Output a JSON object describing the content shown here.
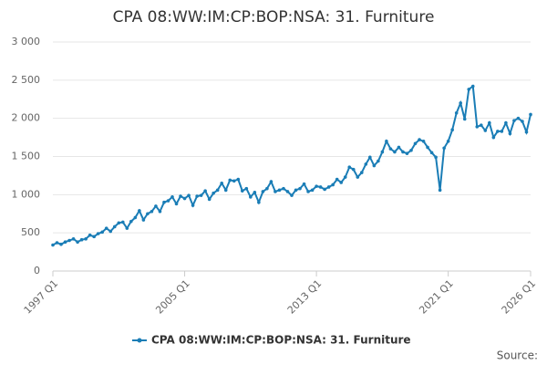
{
  "chart_data": {
    "type": "line",
    "title": "CPA 08:WW:IM:CP:BOP:NSA: 31. Furniture",
    "source": "Source:",
    "categories": [
      "1997 Q1",
      null,
      null,
      null,
      null,
      null,
      null,
      null,
      null,
      null,
      null,
      null,
      null,
      null,
      null,
      null,
      null,
      null,
      null,
      null,
      null,
      null,
      null,
      null,
      null,
      null,
      null,
      null,
      null,
      null,
      null,
      null,
      "2005 Q1",
      null,
      null,
      null,
      null,
      null,
      null,
      null,
      null,
      null,
      null,
      null,
      null,
      null,
      null,
      null,
      null,
      null,
      null,
      null,
      null,
      null,
      null,
      null,
      null,
      null,
      null,
      null,
      null,
      null,
      null,
      null,
      "2013 Q1",
      null,
      null,
      null,
      null,
      null,
      null,
      null,
      null,
      null,
      null,
      null,
      null,
      null,
      null,
      null,
      null,
      null,
      null,
      null,
      null,
      null,
      null,
      null,
      null,
      null,
      null,
      null,
      null,
      null,
      null,
      null,
      "2021 Q1",
      null,
      null,
      null,
      null,
      null,
      null,
      null,
      null,
      null,
      null,
      null,
      null,
      null,
      null,
      null,
      null,
      null,
      null,
      null,
      "2026 Q1"
    ],
    "series": [
      {
        "name": "CPA 08:WW:IM:CP:BOP:NSA: 31. Furniture",
        "color": "#1a7db6",
        "values": [
          340,
          370,
          350,
          380,
          400,
          420,
          380,
          410,
          420,
          470,
          450,
          490,
          510,
          560,
          520,
          580,
          630,
          640,
          560,
          650,
          700,
          790,
          670,
          750,
          780,
          850,
          780,
          900,
          920,
          970,
          880,
          980,
          950,
          990,
          860,
          980,
          990,
          1050,
          940,
          1020,
          1060,
          1150,
          1060,
          1190,
          1180,
          1200,
          1050,
          1080,
          970,
          1030,
          900,
          1040,
          1080,
          1170,
          1040,
          1060,
          1080,
          1040,
          990,
          1060,
          1080,
          1140,
          1040,
          1060,
          1110,
          1100,
          1070,
          1100,
          1130,
          1200,
          1160,
          1230,
          1360,
          1330,
          1230,
          1290,
          1400,
          1490,
          1380,
          1440,
          1560,
          1700,
          1600,
          1560,
          1620,
          1560,
          1540,
          1580,
          1670,
          1720,
          1700,
          1620,
          1550,
          1490,
          1060,
          1610,
          1700,
          1850,
          2070,
          2200,
          1990,
          2380,
          2420,
          1890,
          1910,
          1840,
          1940,
          1750,
          1830,
          1830,
          1940,
          1800,
          1970,
          2000,
          1960,
          1820,
          2050
        ]
      }
    ],
    "ylim": [
      0,
      3000
    ],
    "yticks": [
      0,
      500,
      {
        "value": 1000,
        "label": "1 000"
      },
      {
        "value": 1500,
        "label": "1 500"
      },
      {
        "value": 2000,
        "label": "2 000"
      },
      {
        "value": 2500,
        "label": "2 500"
      },
      {
        "value": 3000,
        "label": "3 000"
      }
    ],
    "grid": true,
    "legend": "bottom"
  }
}
